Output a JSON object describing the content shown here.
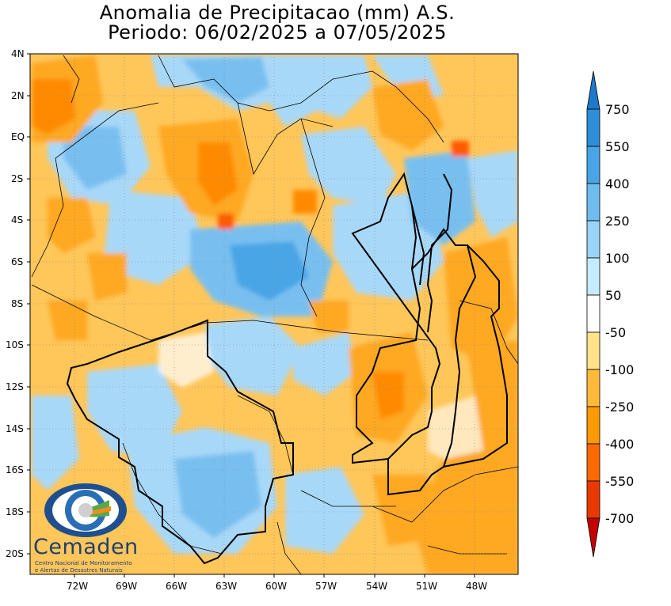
{
  "title": {
    "line1": "Anomalia de Precipitacao (mm) A.S.",
    "line2": "Periodo: 06/02/2025 a 07/05/2025"
  },
  "lat_labels": [
    "4N",
    "2N",
    "EQ",
    "2S",
    "4S",
    "6S",
    "8S",
    "10S",
    "12S",
    "14S",
    "16S",
    "18S",
    "20S"
  ],
  "lon_labels": [
    "72W",
    "69W",
    "66W",
    "63W",
    "60W",
    "57W",
    "54W",
    "51W",
    "48W"
  ],
  "colorbar": {
    "labels": [
      "750",
      "550",
      "400",
      "250",
      "100",
      "50",
      "-50",
      "-100",
      "-250",
      "-400",
      "-550",
      "-700"
    ],
    "colors": [
      "#1f78c8",
      "#2e8ed8",
      "#4aa5e6",
      "#6ebcf0",
      "#9ad3f8",
      "#c4ecfc",
      "#ffffff",
      "#ffe28a",
      "#ffba3c",
      "#ff9a00",
      "#ff6a00",
      "#e83a00",
      "#c40000"
    ]
  },
  "palette": {
    "blue_light": "#a8d8f8",
    "blue_mid": "#78bff0",
    "blue_dark": "#4aa5e6",
    "orange_light": "#ffc65a",
    "orange_mid": "#ffa820",
    "orange_dark": "#ff8a00",
    "red": "#ff5a00"
  },
  "logo": {
    "name": "Cemaden",
    "subtitle1": "Centro Nacional de Monitoramento",
    "subtitle2": "e Alertas de Desastres Naturais"
  }
}
